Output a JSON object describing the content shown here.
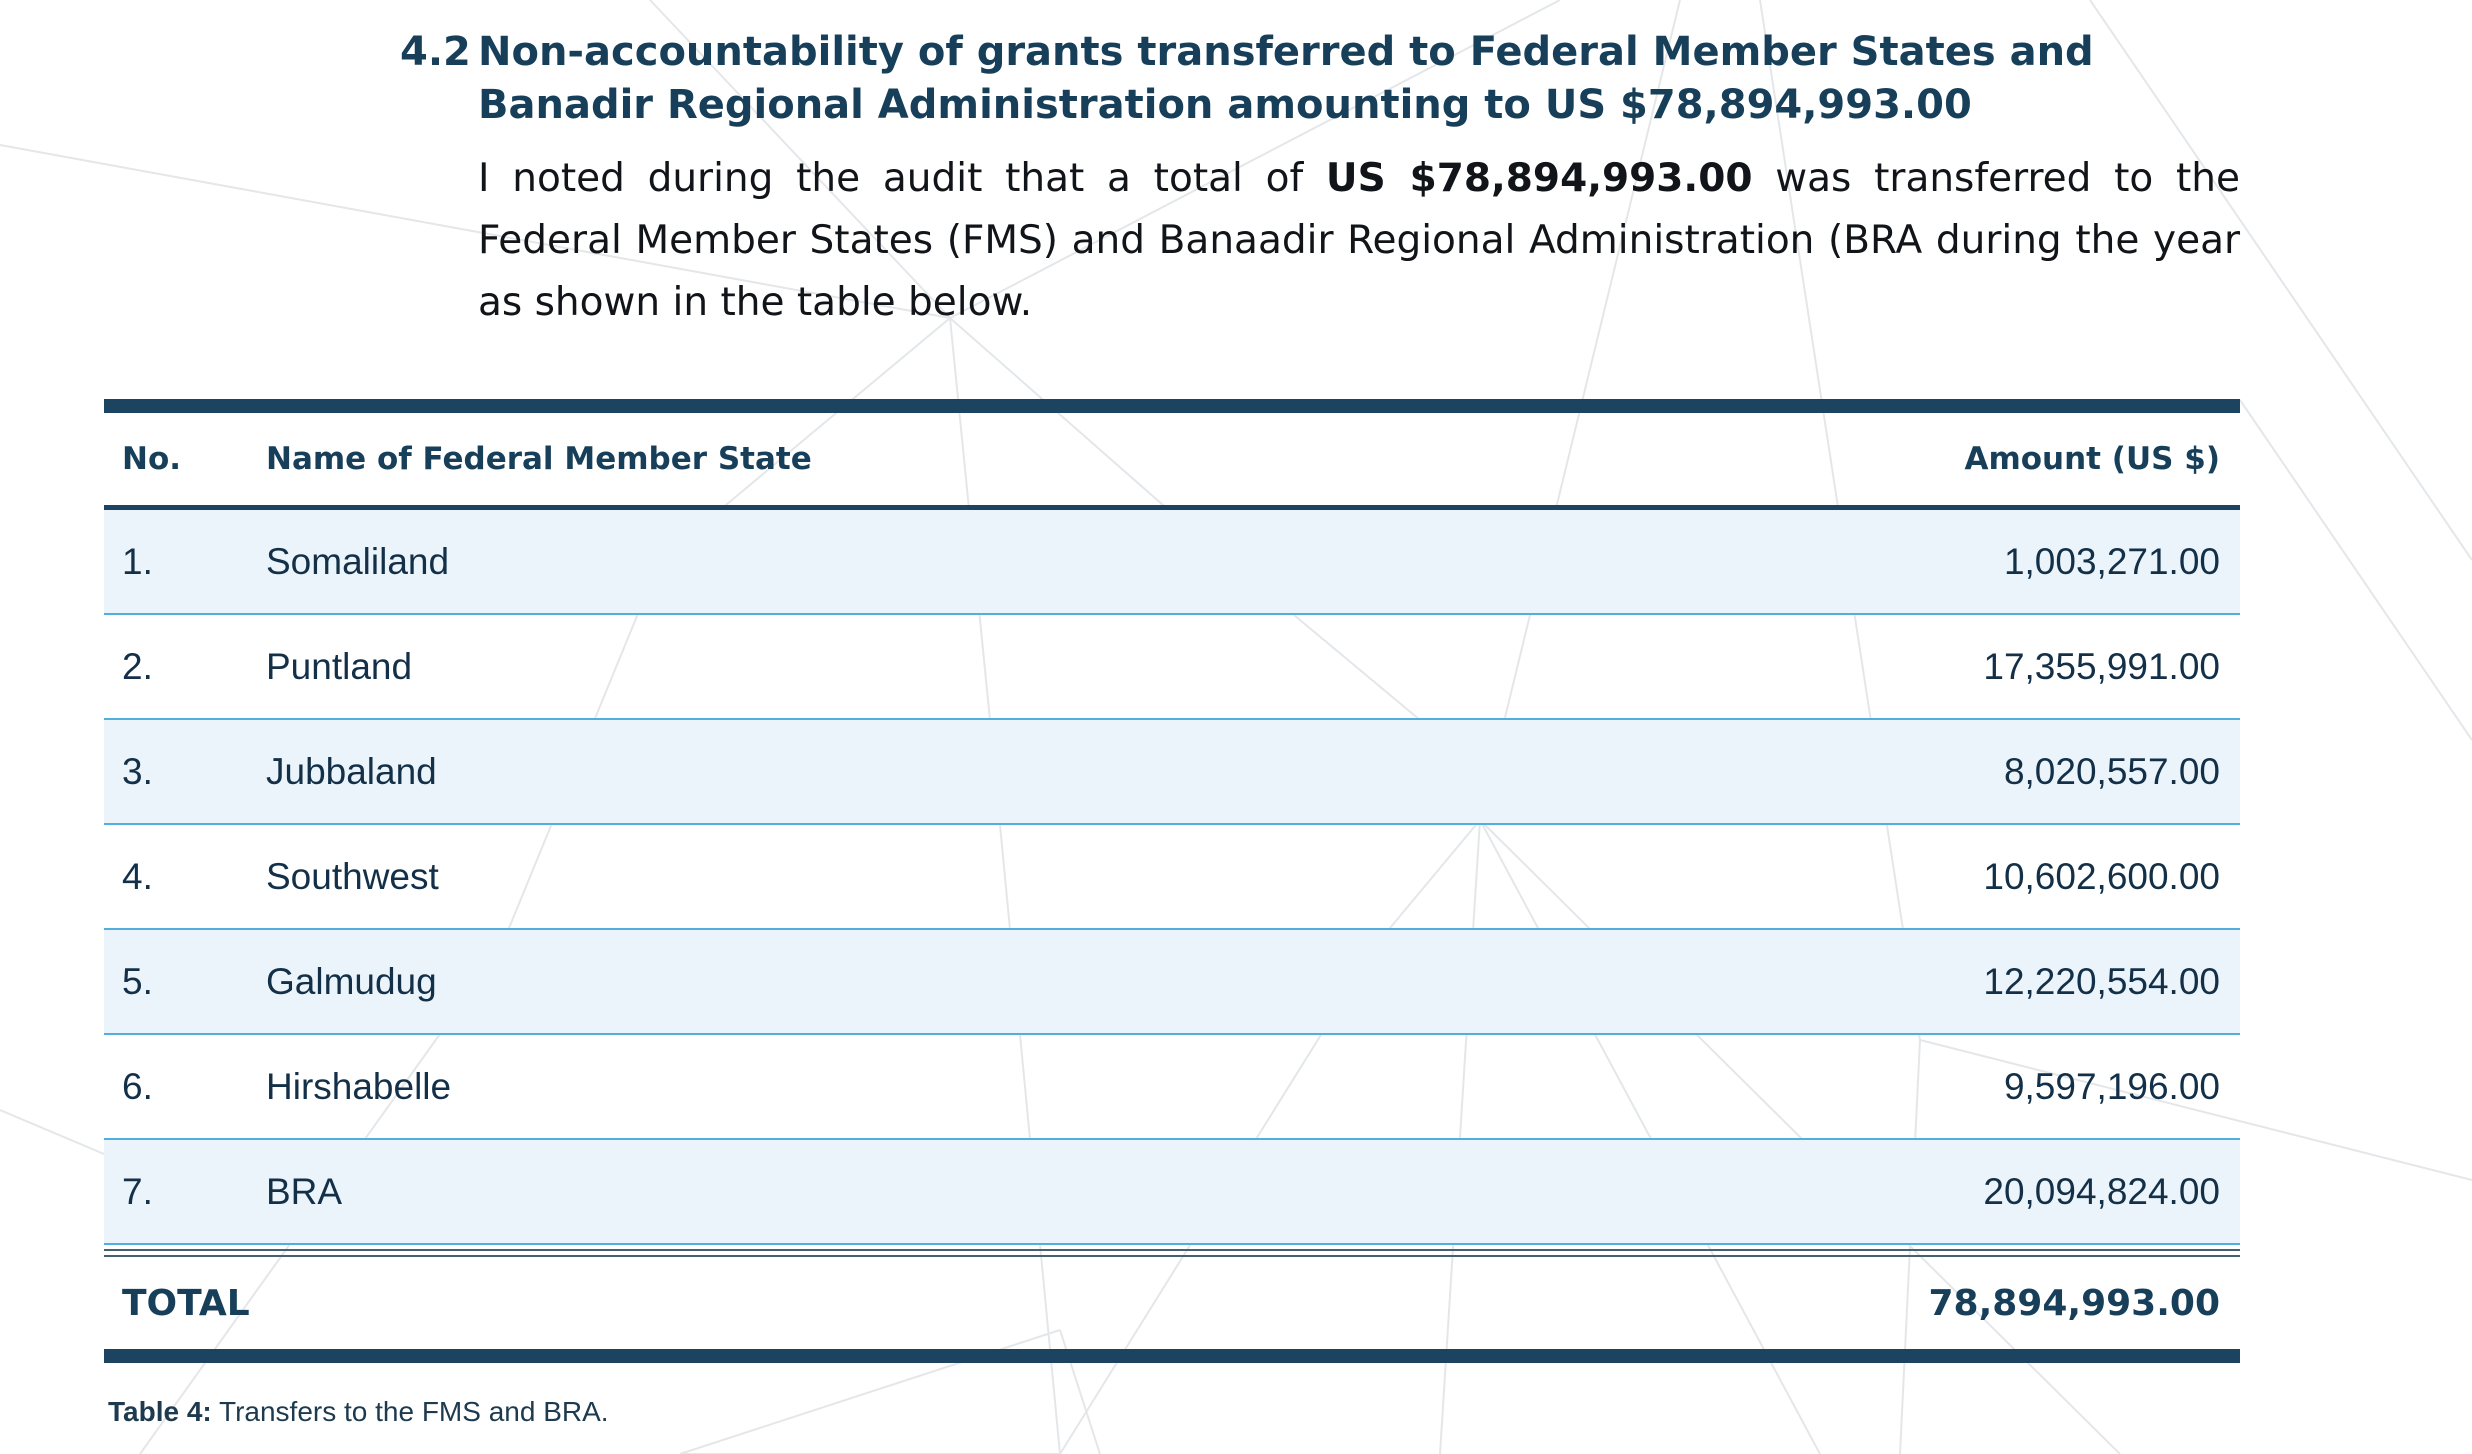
{
  "section": {
    "number": "4.2",
    "title": "Non-accountability of grants transferred to Federal Member States and Banadir Regional Administration amounting to US $78,894,993.00"
  },
  "intro": {
    "before": "I noted during the audit that a total of ",
    "amount": "US $78,894,993.00",
    "after": " was transferred to the Federal Member States (FMS) and Banaadir Regional Administration (BRA during the year as shown in the table below."
  },
  "table": {
    "headers": {
      "no": "No.",
      "name": "Name of Federal Member State",
      "amount": "Amount (US $)"
    },
    "rows": [
      {
        "no": "1.",
        "name": "Somaliland",
        "amount": "1,003,271.00"
      },
      {
        "no": "2.",
        "name": "Puntland",
        "amount": "17,355,991.00"
      },
      {
        "no": "3.",
        "name": "Jubbaland",
        "amount": "8,020,557.00"
      },
      {
        "no": "4.",
        "name": "Southwest",
        "amount": "10,602,600.00"
      },
      {
        "no": "5.",
        "name": "Galmudug",
        "amount": "12,220,554.00"
      },
      {
        "no": "6.",
        "name": "Hirshabelle",
        "amount": "9,597,196.00"
      },
      {
        "no": "7.",
        "name": "BRA",
        "amount": "20,094,824.00"
      }
    ],
    "total": {
      "label": "TOTAL",
      "amount": "78,894,993.00"
    }
  },
  "caption": {
    "label": "Table 4:",
    "text": " Transfers to the FMS and BRA."
  },
  "colors": {
    "heading": "#173f5a",
    "table_bar": "#1c4460",
    "row_shade": "#ebf4fa",
    "row_divider": "#52aedb"
  }
}
